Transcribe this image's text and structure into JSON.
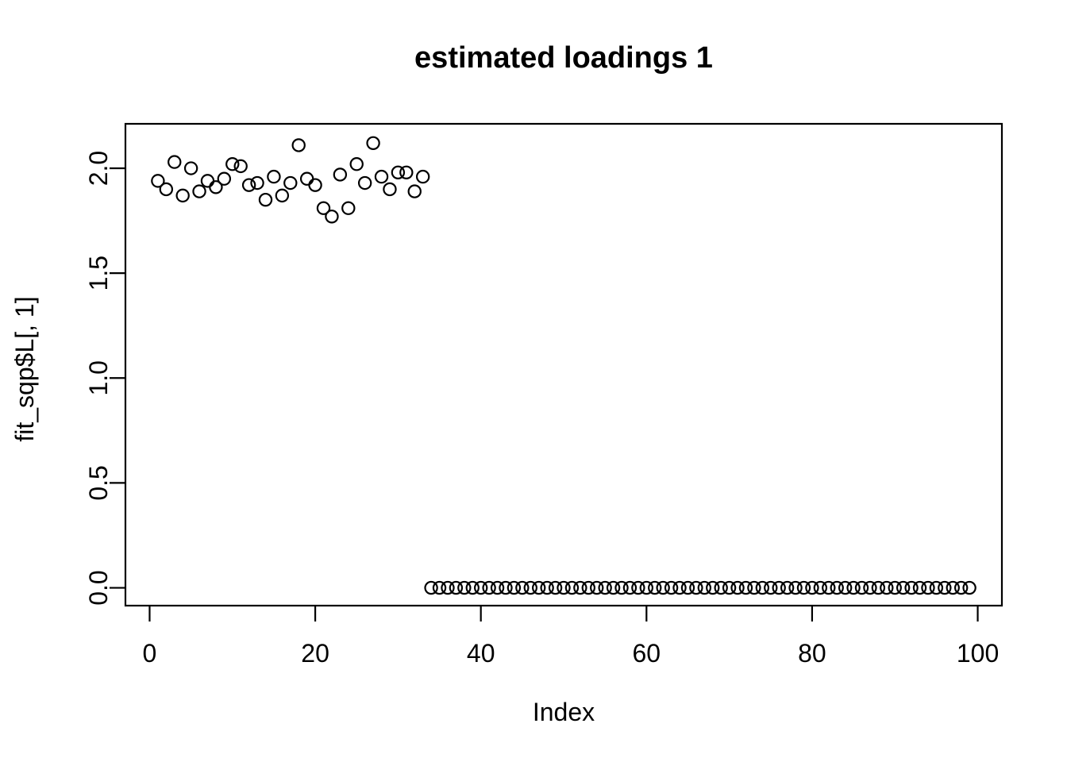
{
  "chart_data": {
    "type": "scatter",
    "title": "estimated loadings 1",
    "xlabel": "Index",
    "ylabel": "fit_sqp$L[, 1]",
    "xlim": [
      -2.92,
      102.92
    ],
    "ylim": [
      -0.085,
      2.212
    ],
    "x_ticks": [
      0,
      20,
      40,
      60,
      80,
      100
    ],
    "x_tick_labels": [
      "0",
      "20",
      "40",
      "60",
      "80",
      "100"
    ],
    "y_ticks": [
      0,
      0.5,
      1,
      1.5,
      2
    ],
    "y_tick_labels": [
      "0.0",
      "0.5",
      "1.0",
      "1.5",
      "2.0"
    ],
    "grid": false,
    "legend": null,
    "marker": "open-circle",
    "marker_color": "#000000",
    "box_color": "#000000",
    "series": [
      {
        "name": "fit_sqp$L[, 1]",
        "points": [
          [
            1,
            1.94
          ],
          [
            2,
            1.9
          ],
          [
            3,
            2.03
          ],
          [
            4,
            1.87
          ],
          [
            5,
            2.0
          ],
          [
            6,
            1.89
          ],
          [
            7,
            1.94
          ],
          [
            8,
            1.91
          ],
          [
            9,
            1.95
          ],
          [
            10,
            2.02
          ],
          [
            11,
            2.01
          ],
          [
            12,
            1.92
          ],
          [
            13,
            1.93
          ],
          [
            14,
            1.85
          ],
          [
            15,
            1.96
          ],
          [
            16,
            1.87
          ],
          [
            17,
            1.93
          ],
          [
            18,
            2.11
          ],
          [
            19,
            1.95
          ],
          [
            20,
            1.92
          ],
          [
            21,
            1.81
          ],
          [
            22,
            1.77
          ],
          [
            23,
            1.97
          ],
          [
            24,
            1.81
          ],
          [
            25,
            2.02
          ],
          [
            26,
            1.93
          ],
          [
            27,
            2.12
          ],
          [
            28,
            1.96
          ],
          [
            29,
            1.9
          ],
          [
            30,
            1.98
          ],
          [
            31,
            1.98
          ],
          [
            32,
            1.89
          ],
          [
            33,
            1.96
          ],
          [
            34,
            0
          ],
          [
            35,
            0
          ],
          [
            36,
            0
          ],
          [
            37,
            0
          ],
          [
            38,
            0
          ],
          [
            39,
            0
          ],
          [
            40,
            0
          ],
          [
            41,
            0
          ],
          [
            42,
            0
          ],
          [
            43,
            0
          ],
          [
            44,
            0
          ],
          [
            45,
            0
          ],
          [
            46,
            0
          ],
          [
            47,
            0
          ],
          [
            48,
            0
          ],
          [
            49,
            0
          ],
          [
            50,
            0
          ],
          [
            51,
            0
          ],
          [
            52,
            0
          ],
          [
            53,
            0
          ],
          [
            54,
            0
          ],
          [
            55,
            0
          ],
          [
            56,
            0
          ],
          [
            57,
            0
          ],
          [
            58,
            0
          ],
          [
            59,
            0
          ],
          [
            60,
            0
          ],
          [
            61,
            0
          ],
          [
            62,
            0
          ],
          [
            63,
            0
          ],
          [
            64,
            0
          ],
          [
            65,
            0
          ],
          [
            66,
            0
          ],
          [
            67,
            0
          ],
          [
            68,
            0
          ],
          [
            69,
            0
          ],
          [
            70,
            0
          ],
          [
            71,
            0
          ],
          [
            72,
            0
          ],
          [
            73,
            0
          ],
          [
            74,
            0
          ],
          [
            75,
            0
          ],
          [
            76,
            0
          ],
          [
            77,
            0
          ],
          [
            78,
            0
          ],
          [
            79,
            0
          ],
          [
            80,
            0
          ],
          [
            81,
            0
          ],
          [
            82,
            0
          ],
          [
            83,
            0
          ],
          [
            84,
            0
          ],
          [
            85,
            0
          ],
          [
            86,
            0
          ],
          [
            87,
            0
          ],
          [
            88,
            0
          ],
          [
            89,
            0
          ],
          [
            90,
            0
          ],
          [
            91,
            0
          ],
          [
            92,
            0
          ],
          [
            93,
            0
          ],
          [
            94,
            0
          ],
          [
            95,
            0
          ],
          [
            96,
            0
          ],
          [
            97,
            0
          ],
          [
            98,
            0
          ],
          [
            99,
            0
          ]
        ]
      }
    ]
  }
}
